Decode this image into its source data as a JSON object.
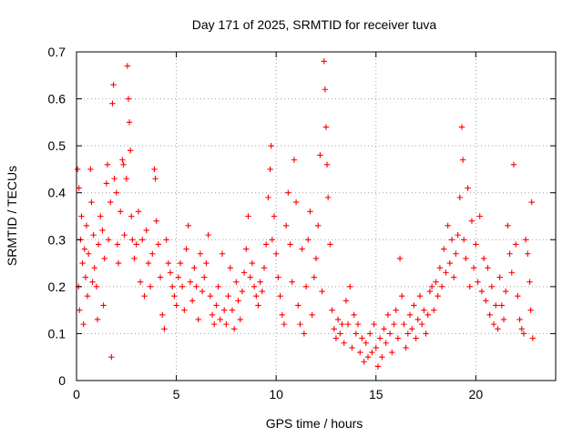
{
  "chart_data": {
    "type": "scatter",
    "title": "Day 171 of 2025, SRMTID for receiver tuva",
    "xlabel": "GPS time / hours",
    "ylabel": "SRMTID / TECUs",
    "xlim": [
      0,
      24
    ],
    "ylim": [
      0,
      0.7
    ],
    "xticks": [
      0,
      5,
      10,
      15,
      20
    ],
    "xtick_labels": [
      "0",
      "5",
      "10",
      "15",
      "20"
    ],
    "yticks": [
      0,
      0.1,
      0.2,
      0.3,
      0.4,
      0.5,
      0.6,
      0.7
    ],
    "ytick_labels": [
      "0",
      "0.1",
      "0.2",
      "0.3",
      "0.4",
      "0.5",
      "0.6",
      "0.7"
    ],
    "grid": true,
    "marker": "plus",
    "color": "#ff0000",
    "series": [
      {
        "name": "SRMTID",
        "points": [
          [
            0.05,
            0.45
          ],
          [
            0.1,
            0.2
          ],
          [
            0.12,
            0.41
          ],
          [
            0.15,
            0.15
          ],
          [
            0.2,
            0.3
          ],
          [
            0.25,
            0.35
          ],
          [
            0.3,
            0.25
          ],
          [
            0.35,
            0.12
          ],
          [
            0.4,
            0.28
          ],
          [
            0.45,
            0.22
          ],
          [
            0.5,
            0.33
          ],
          [
            0.55,
            0.18
          ],
          [
            0.6,
            0.27
          ],
          [
            0.7,
            0.45
          ],
          [
            0.75,
            0.38
          ],
          [
            0.8,
            0.21
          ],
          [
            0.85,
            0.31
          ],
          [
            0.9,
            0.24
          ],
          [
            1.0,
            0.2
          ],
          [
            1.05,
            0.13
          ],
          [
            1.1,
            0.29
          ],
          [
            1.2,
            0.35
          ],
          [
            1.3,
            0.32
          ],
          [
            1.35,
            0.16
          ],
          [
            1.4,
            0.26
          ],
          [
            1.5,
            0.42
          ],
          [
            1.55,
            0.46
          ],
          [
            1.6,
            0.3
          ],
          [
            1.7,
            0.38
          ],
          [
            1.75,
            0.05
          ],
          [
            1.8,
            0.59
          ],
          [
            1.85,
            0.63
          ],
          [
            1.9,
            0.43
          ],
          [
            2.0,
            0.4
          ],
          [
            2.05,
            0.29
          ],
          [
            2.1,
            0.25
          ],
          [
            2.2,
            0.36
          ],
          [
            2.3,
            0.47
          ],
          [
            2.35,
            0.46
          ],
          [
            2.4,
            0.31
          ],
          [
            2.5,
            0.43
          ],
          [
            2.55,
            0.67
          ],
          [
            2.6,
            0.6
          ],
          [
            2.65,
            0.55
          ],
          [
            2.7,
            0.49
          ],
          [
            2.75,
            0.35
          ],
          [
            2.8,
            0.3
          ],
          [
            2.9,
            0.26
          ],
          [
            3.0,
            0.29
          ],
          [
            3.1,
            0.36
          ],
          [
            3.2,
            0.21
          ],
          [
            3.3,
            0.3
          ],
          [
            3.4,
            0.18
          ],
          [
            3.5,
            0.32
          ],
          [
            3.6,
            0.25
          ],
          [
            3.7,
            0.2
          ],
          [
            3.8,
            0.27
          ],
          [
            3.9,
            0.45
          ],
          [
            3.95,
            0.43
          ],
          [
            4.0,
            0.34
          ],
          [
            4.1,
            0.29
          ],
          [
            4.2,
            0.22
          ],
          [
            4.3,
            0.14
          ],
          [
            4.4,
            0.11
          ],
          [
            4.5,
            0.3
          ],
          [
            4.6,
            0.25
          ],
          [
            4.7,
            0.23
          ],
          [
            4.8,
            0.2
          ],
          [
            4.9,
            0.18
          ],
          [
            5.0,
            0.16
          ],
          [
            5.1,
            0.22
          ],
          [
            5.2,
            0.25
          ],
          [
            5.3,
            0.2
          ],
          [
            5.4,
            0.15
          ],
          [
            5.5,
            0.28
          ],
          [
            5.6,
            0.33
          ],
          [
            5.7,
            0.21
          ],
          [
            5.8,
            0.17
          ],
          [
            5.9,
            0.24
          ],
          [
            6.0,
            0.2
          ],
          [
            6.1,
            0.13
          ],
          [
            6.2,
            0.27
          ],
          [
            6.3,
            0.19
          ],
          [
            6.4,
            0.22
          ],
          [
            6.5,
            0.25
          ],
          [
            6.6,
            0.31
          ],
          [
            6.7,
            0.18
          ],
          [
            6.8,
            0.14
          ],
          [
            6.9,
            0.12
          ],
          [
            7.0,
            0.16
          ],
          [
            7.1,
            0.2
          ],
          [
            7.2,
            0.13
          ],
          [
            7.3,
            0.27
          ],
          [
            7.4,
            0.15
          ],
          [
            7.5,
            0.12
          ],
          [
            7.6,
            0.18
          ],
          [
            7.7,
            0.24
          ],
          [
            7.8,
            0.15
          ],
          [
            7.9,
            0.11
          ],
          [
            8.0,
            0.21
          ],
          [
            8.1,
            0.17
          ],
          [
            8.2,
            0.13
          ],
          [
            8.3,
            0.19
          ],
          [
            8.4,
            0.23
          ],
          [
            8.5,
            0.28
          ],
          [
            8.6,
            0.35
          ],
          [
            8.7,
            0.22
          ],
          [
            8.8,
            0.25
          ],
          [
            8.9,
            0.2
          ],
          [
            9.0,
            0.18
          ],
          [
            9.1,
            0.16
          ],
          [
            9.2,
            0.21
          ],
          [
            9.3,
            0.19
          ],
          [
            9.4,
            0.24
          ],
          [
            9.5,
            0.29
          ],
          [
            9.6,
            0.39
          ],
          [
            9.7,
            0.45
          ],
          [
            9.75,
            0.5
          ],
          [
            9.8,
            0.3
          ],
          [
            9.9,
            0.35
          ],
          [
            10.0,
            0.27
          ],
          [
            10.1,
            0.22
          ],
          [
            10.2,
            0.18
          ],
          [
            10.3,
            0.14
          ],
          [
            10.4,
            0.12
          ],
          [
            10.5,
            0.33
          ],
          [
            10.6,
            0.4
          ],
          [
            10.7,
            0.29
          ],
          [
            10.8,
            0.21
          ],
          [
            10.9,
            0.47
          ],
          [
            11.0,
            0.38
          ],
          [
            11.1,
            0.16
          ],
          [
            11.2,
            0.12
          ],
          [
            11.3,
            0.28
          ],
          [
            11.4,
            0.1
          ],
          [
            11.5,
            0.2
          ],
          [
            11.6,
            0.3
          ],
          [
            11.7,
            0.36
          ],
          [
            11.8,
            0.14
          ],
          [
            11.9,
            0.22
          ],
          [
            12.0,
            0.26
          ],
          [
            12.1,
            0.33
          ],
          [
            12.2,
            0.48
          ],
          [
            12.3,
            0.19
          ],
          [
            12.4,
            0.68
          ],
          [
            12.45,
            0.62
          ],
          [
            12.5,
            0.54
          ],
          [
            12.55,
            0.46
          ],
          [
            12.6,
            0.39
          ],
          [
            12.7,
            0.29
          ],
          [
            12.8,
            0.15
          ],
          [
            12.9,
            0.11
          ],
          [
            13.0,
            0.09
          ],
          [
            13.1,
            0.13
          ],
          [
            13.2,
            0.1
          ],
          [
            13.3,
            0.12
          ],
          [
            13.4,
            0.08
          ],
          [
            13.5,
            0.17
          ],
          [
            13.6,
            0.12
          ],
          [
            13.7,
            0.2
          ],
          [
            13.8,
            0.07
          ],
          [
            13.9,
            0.14
          ],
          [
            14.0,
            0.1
          ],
          [
            14.1,
            0.12
          ],
          [
            14.2,
            0.06
          ],
          [
            14.3,
            0.09
          ],
          [
            14.4,
            0.04
          ],
          [
            14.5,
            0.08
          ],
          [
            14.6,
            0.05
          ],
          [
            14.7,
            0.1
          ],
          [
            14.8,
            0.06
          ],
          [
            14.9,
            0.12
          ],
          [
            15.0,
            0.07
          ],
          [
            15.1,
            0.03
          ],
          [
            15.2,
            0.09
          ],
          [
            15.3,
            0.05
          ],
          [
            15.4,
            0.11
          ],
          [
            15.5,
            0.08
          ],
          [
            15.6,
            0.14
          ],
          [
            15.7,
            0.1
          ],
          [
            15.8,
            0.06
          ],
          [
            15.9,
            0.12
          ],
          [
            16.0,
            0.15
          ],
          [
            16.1,
            0.09
          ],
          [
            16.2,
            0.26
          ],
          [
            16.3,
            0.18
          ],
          [
            16.4,
            0.12
          ],
          [
            16.5,
            0.07
          ],
          [
            16.6,
            0.1
          ],
          [
            16.7,
            0.14
          ],
          [
            16.8,
            0.11
          ],
          [
            16.9,
            0.16
          ],
          [
            17.0,
            0.09
          ],
          [
            17.1,
            0.13
          ],
          [
            17.2,
            0.18
          ],
          [
            17.3,
            0.12
          ],
          [
            17.4,
            0.15
          ],
          [
            17.5,
            0.1
          ],
          [
            17.6,
            0.14
          ],
          [
            17.7,
            0.19
          ],
          [
            17.8,
            0.2
          ],
          [
            17.9,
            0.15
          ],
          [
            18.0,
            0.21
          ],
          [
            18.1,
            0.18
          ],
          [
            18.2,
            0.24
          ],
          [
            18.3,
            0.2
          ],
          [
            18.4,
            0.28
          ],
          [
            18.5,
            0.23
          ],
          [
            18.6,
            0.33
          ],
          [
            18.7,
            0.25
          ],
          [
            18.8,
            0.3
          ],
          [
            18.9,
            0.22
          ],
          [
            19.0,
            0.27
          ],
          [
            19.1,
            0.31
          ],
          [
            19.2,
            0.39
          ],
          [
            19.3,
            0.54
          ],
          [
            19.35,
            0.47
          ],
          [
            19.4,
            0.3
          ],
          [
            19.5,
            0.26
          ],
          [
            19.6,
            0.41
          ],
          [
            19.7,
            0.2
          ],
          [
            19.8,
            0.34
          ],
          [
            19.9,
            0.24
          ],
          [
            20.0,
            0.29
          ],
          [
            20.1,
            0.21
          ],
          [
            20.2,
            0.35
          ],
          [
            20.3,
            0.19
          ],
          [
            20.4,
            0.26
          ],
          [
            20.5,
            0.17
          ],
          [
            20.6,
            0.24
          ],
          [
            20.7,
            0.14
          ],
          [
            20.8,
            0.2
          ],
          [
            20.9,
            0.12
          ],
          [
            21.0,
            0.16
          ],
          [
            21.1,
            0.11
          ],
          [
            21.2,
            0.22
          ],
          [
            21.3,
            0.16
          ],
          [
            21.4,
            0.13
          ],
          [
            21.5,
            0.19
          ],
          [
            21.6,
            0.33
          ],
          [
            21.7,
            0.27
          ],
          [
            21.8,
            0.23
          ],
          [
            21.9,
            0.46
          ],
          [
            22.0,
            0.29
          ],
          [
            22.1,
            0.18
          ],
          [
            22.2,
            0.13
          ],
          [
            22.3,
            0.11
          ],
          [
            22.4,
            0.1
          ],
          [
            22.5,
            0.3
          ],
          [
            22.6,
            0.27
          ],
          [
            22.7,
            0.21
          ],
          [
            22.75,
            0.15
          ],
          [
            22.8,
            0.38
          ],
          [
            22.85,
            0.09
          ]
        ]
      }
    ]
  }
}
